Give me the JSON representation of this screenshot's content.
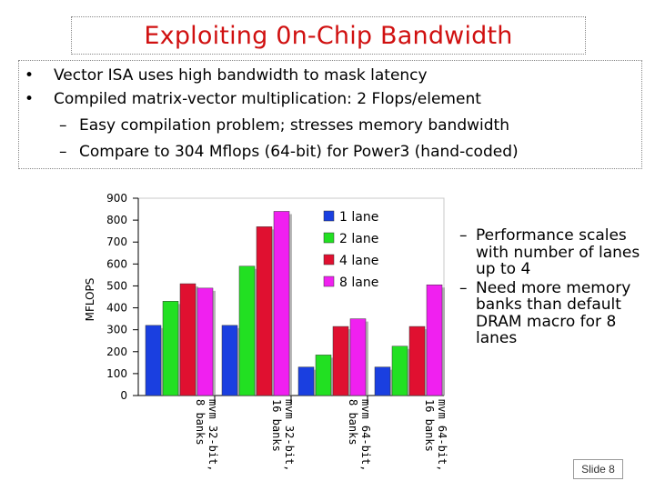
{
  "slide": {
    "title": "Exploiting 0n-Chip Bandwidth",
    "bullets": [
      {
        "marker": "•",
        "text": "Vector ISA uses high bandwidth to mask latency"
      },
      {
        "marker": "•",
        "text": "Compiled matrix-vector multiplication: 2 Flops/element"
      },
      {
        "marker": "–",
        "text": "Easy compilation problem; stresses memory bandwidth"
      },
      {
        "marker": "–",
        "text": "Compare to 304 Mflops (64-bit) for Power3 (hand-coded)"
      }
    ],
    "side_notes": [
      {
        "marker": "–",
        "text": "Performance scales with number of lanes up to 4"
      },
      {
        "marker": "–",
        "text": "Need more memory banks than default DRAM macro for 8 lanes"
      }
    ],
    "slide_number": "Slide 8"
  },
  "chart_data": {
    "type": "bar",
    "ylabel": "MFLOPS",
    "ylim": [
      0,
      900
    ],
    "yticks": [
      0,
      100,
      200,
      300,
      400,
      500,
      600,
      700,
      800,
      900
    ],
    "categories": [
      "mvm 32-bit, 8 banks",
      "mvm 32-bit, 16 banks",
      "mvm 64-bit, 8 banks",
      "mvm 64-bit, 16 banks"
    ],
    "series": [
      {
        "name": "1 lane",
        "color": "#1a3fe0",
        "values": [
          320,
          320,
          130,
          130
        ]
      },
      {
        "name": "2 lane",
        "color": "#22e022",
        "values": [
          430,
          590,
          185,
          225
        ]
      },
      {
        "name": "4 lane",
        "color": "#e01030",
        "values": [
          510,
          770,
          315,
          315
        ]
      },
      {
        "name": "8 lane",
        "color": "#f020f0",
        "values": [
          490,
          840,
          350,
          505
        ]
      }
    ],
    "legend_position": "top-right",
    "grid": false
  }
}
